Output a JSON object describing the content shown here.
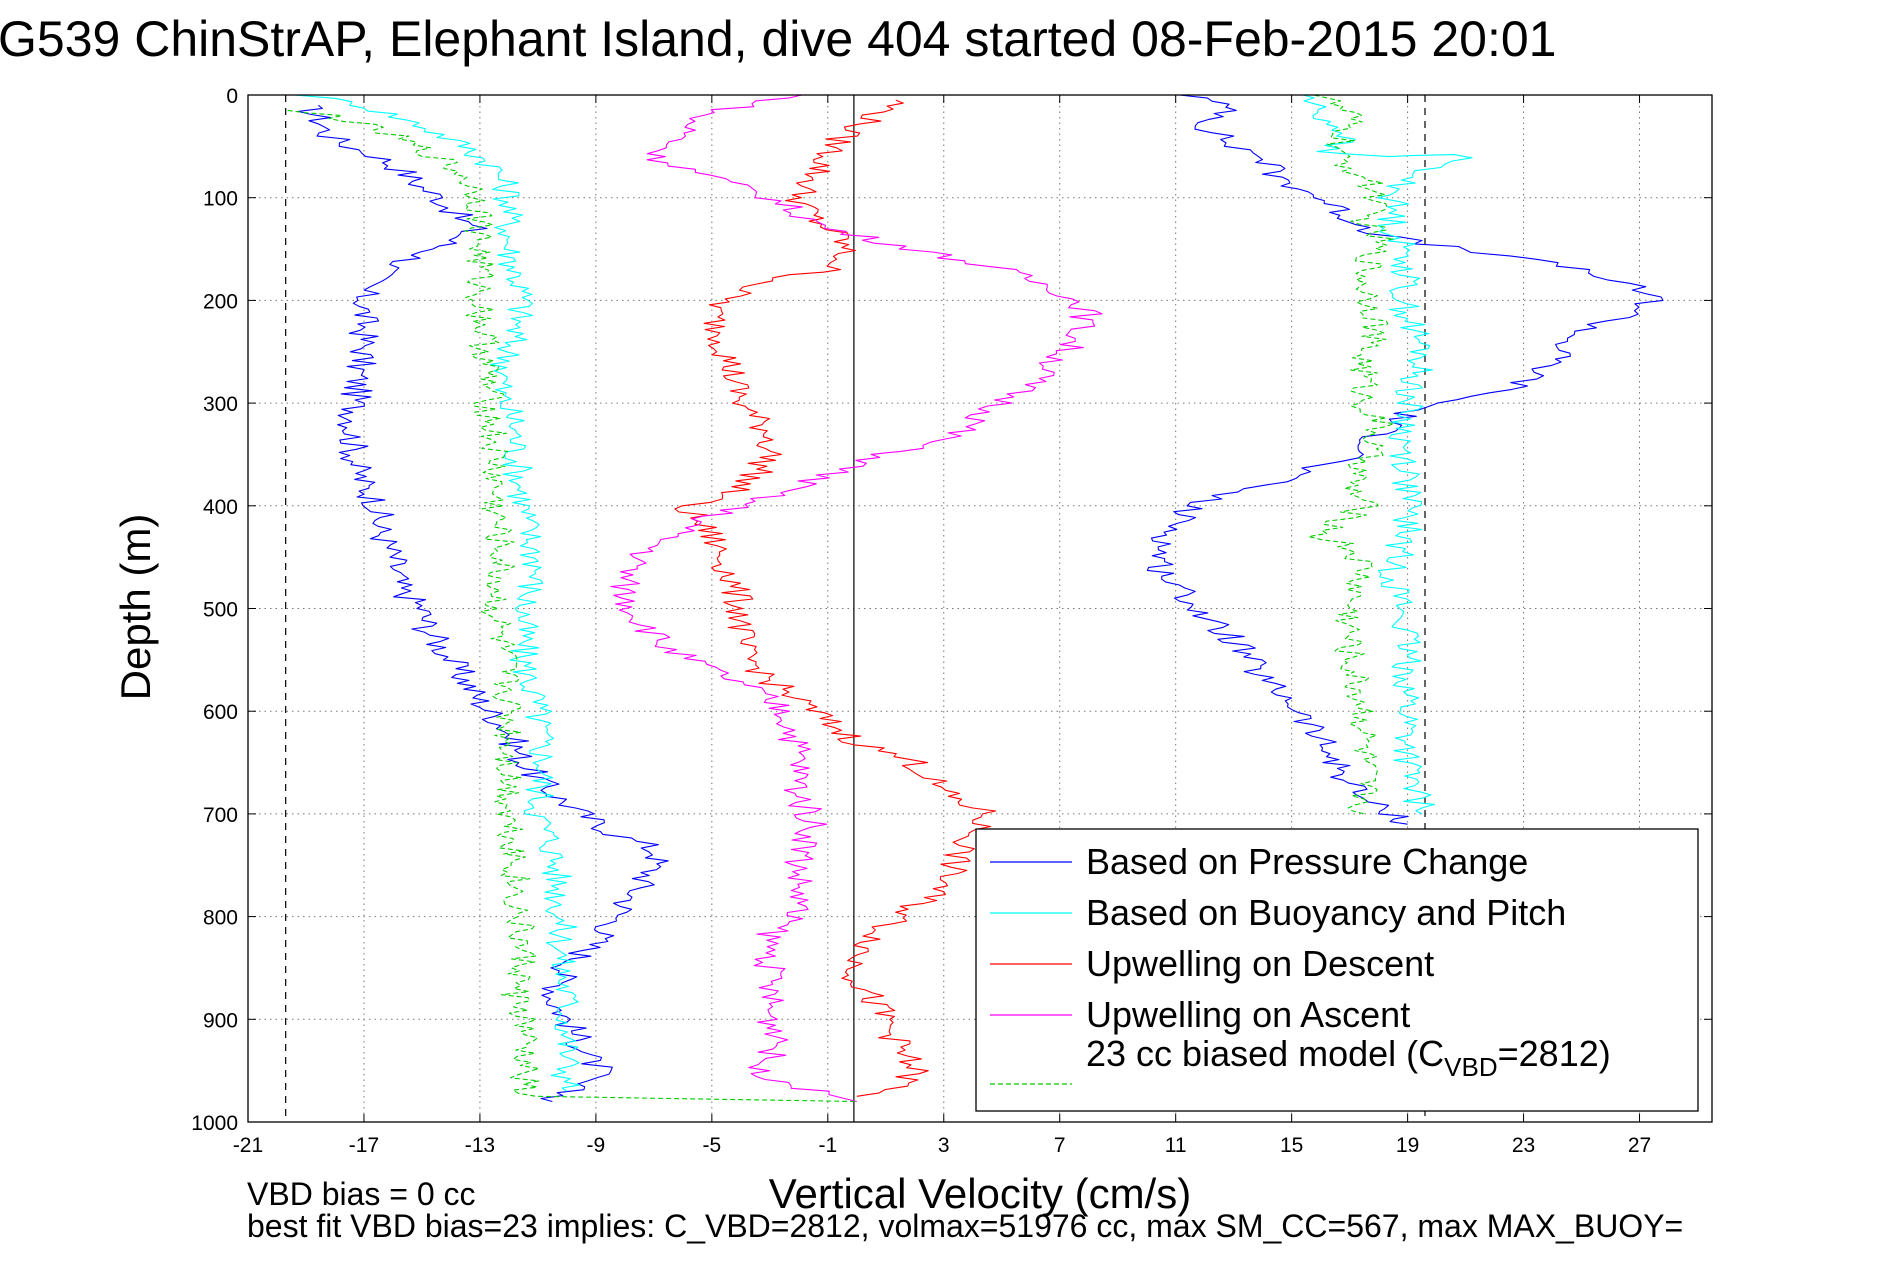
{
  "chart_data": {
    "type": "line",
    "title": "G539 ChinStrAP, Elephant Island, dive 404 started 08-Feb-2015 20:01",
    "xlabel": "Vertical Velocity (cm/s)",
    "ylabel": "Depth (m)",
    "xlim": [
      -21,
      29.5
    ],
    "ylim": [
      0,
      1000
    ],
    "y_reversed": true,
    "grid": true,
    "x_ticks": [
      -21,
      -17,
      -13,
      -9,
      -5,
      -1,
      3,
      7,
      11,
      15,
      19,
      23,
      27
    ],
    "x_tick_labels": [
      "-21",
      "-17",
      "-13",
      "-9",
      "-5",
      "-1",
      "3",
      "7",
      "11",
      "15",
      "19",
      "23",
      "27"
    ],
    "y_ticks": [
      0,
      100,
      200,
      300,
      400,
      500,
      600,
      700,
      800,
      900,
      1000
    ],
    "y_tick_labels": [
      "0",
      "100",
      "200",
      "300",
      "400",
      "500",
      "600",
      "700",
      "800",
      "900",
      "1000"
    ],
    "reference_lines": [
      {
        "x": -19.7,
        "style": "dashed",
        "color": "#000000"
      },
      {
        "x": -0.1,
        "style": "solid",
        "color": "#000000"
      },
      {
        "x": 19.6,
        "style": "dashed",
        "color": "#000000"
      }
    ],
    "legend_position": "lower-right",
    "series": [
      {
        "name": "Based on Pressure Change",
        "color": "#0000ff",
        "style": "solid",
        "branches": [
          {
            "x": [
              -19,
              -18.5,
              -18.2,
              -17.5,
              -16.5,
              -15.6,
              -15,
              -14.4,
              -14,
              -13.7,
              -13.2,
              -14.5,
              -15.8,
              -16.5,
              -17,
              -17,
              -17,
              -17,
              -17.2,
              -17.3,
              -17.4,
              -17.3,
              -17,
              -16.5,
              -16.5,
              -16,
              -15.8,
              -15,
              -14.8,
              -14,
              -13.5,
              -13,
              -12,
              -11.5,
              -10.5,
              -9.5,
              -8.3,
              -7.3,
              -6.8,
              -7.2,
              -8,
              -8.5,
              -9.2,
              -10,
              -10.3,
              -10.5,
              -10,
              -9.6,
              -9.2,
              -8.8,
              -9.5,
              -10.5
            ],
            "y": [
              10,
              25,
              40,
              50,
              60,
              75,
              90,
              100,
              110,
              120,
              130,
              150,
              165,
              175,
              190,
              200,
              220,
              250,
              270,
              300,
              330,
              360,
              380,
              400,
              420,
              450,
              480,
              500,
              520,
              550,
              570,
              590,
              620,
              650,
              680,
              700,
              720,
              730,
              740,
              760,
              790,
              810,
              830,
              850,
              870,
              880,
              900,
              920,
              940,
              950,
              960,
              980
            ]
          },
          {
            "x": [
              11.5,
              13,
              12,
              12.5,
              13,
              14,
              14.5,
              16,
              17,
              18,
              19.5,
              21,
              23,
              25,
              26,
              27,
              27.5,
              27,
              26,
              25,
              24.5,
              24,
              23.5,
              23,
              22,
              20,
              19,
              18,
              17.5,
              16,
              15,
              14,
              12.5,
              11.5,
              11,
              10.5,
              10.5,
              11,
              11.5,
              12,
              13,
              13.5,
              14,
              15,
              15.5,
              16,
              16.5,
              17,
              17.5,
              18,
              18.5,
              18.8,
              19
            ],
            "y": [
              0,
              15,
              30,
              40,
              50,
              60,
              80,
              100,
              120,
              135,
              145,
              150,
              160,
              170,
              180,
              190,
              200,
              210,
              220,
              230,
              240,
              260,
              270,
              280,
              290,
              300,
              310,
              330,
              350,
              360,
              370,
              380,
              390,
              400,
              420,
              440,
              460,
              480,
              490,
              510,
              530,
              550,
              570,
              590,
              610,
              630,
              650,
              670,
              685,
              695,
              700,
              705,
              710
            ]
          }
        ]
      },
      {
        "name": "Based on Buoyancy and Pitch",
        "color": "#00ffff",
        "style": "solid",
        "branches": [
          {
            "x": [
              -19,
              -17,
              -15,
              -13.5,
              -12.5,
              -12,
              -12,
              -12,
              -11.5,
              -12,
              -12.3,
              -11.8,
              -11.7,
              -11.5,
              -11.3,
              -11,
              -11.5,
              -11.5,
              -11,
              -10.8,
              -11,
              -10.5,
              -10.3,
              -10.2,
              -10.2,
              -10,
              -10,
              -10
            ],
            "y": [
              0,
              10,
              30,
              50,
              70,
              95,
              120,
              150,
              200,
              250,
              290,
              320,
              360,
              400,
              430,
              460,
              500,
              550,
              600,
              650,
              700,
              730,
              770,
              810,
              850,
              880,
              930,
              970
            ]
          },
          {
            "x": [
              15.5,
              16,
              17,
              16,
              18,
              21,
              19,
              18.5,
              18.5,
              19,
              18.8,
              19.5,
              19,
              18.8,
              19,
              19,
              19,
              18.5,
              18.8,
              19,
              19,
              19,
              19.5
            ],
            "y": [
              0,
              20,
              40,
              55,
              60,
              58,
              80,
              100,
              130,
              160,
              200,
              250,
              300,
              340,
              360,
              390,
              420,
              460,
              500,
              560,
              620,
              660,
              700
            ]
          }
        ]
      },
      {
        "name": "Upwelling on Descent",
        "color": "#ff0000",
        "style": "solid",
        "branches": [
          {
            "x": [
              1.5,
              -0.5,
              -1,
              -1.5,
              -2,
              -1.5,
              -0.5,
              -0.5,
              -1,
              -2,
              -4,
              -5,
              -4.5,
              -4,
              -3,
              -3,
              -3.5,
              -4.5,
              -6,
              -5,
              -4.5,
              -4,
              -4,
              -3,
              -2,
              -1,
              0,
              2,
              3,
              4.5,
              3.5,
              3,
              2,
              1,
              0,
              0,
              0.5,
              1,
              1.5,
              2,
              1.5,
              0
            ],
            "y": [
              5,
              40,
              60,
              80,
              100,
              120,
              140,
              160,
              170,
              175,
              190,
              210,
              250,
              300,
              330,
              350,
              370,
              390,
              400,
              430,
              460,
              500,
              540,
              570,
              590,
              610,
              630,
              650,
              680,
              700,
              740,
              770,
              790,
              810,
              840,
              860,
              880,
              900,
              930,
              950,
              965,
              975
            ]
          }
        ]
      },
      {
        "name": "Upwelling on Ascent",
        "color": "#ff00ff",
        "style": "solid",
        "branches": [
          {
            "x": [
              -2,
              -5.5,
              -6,
              -7,
              -3,
              -1,
              2,
              5,
              7,
              8,
              7.5,
              6.5,
              5,
              4,
              3,
              1,
              -1,
              -3,
              -5,
              -6.5,
              -7.5,
              -8,
              -8,
              -7.5,
              -6.5,
              -5,
              -3.5,
              -2.5,
              -2,
              -2,
              -1.5,
              -2,
              -2,
              -3,
              -3,
              -3,
              -2.5,
              -3.5,
              -1.5,
              0
            ],
            "y": [
              0,
              20,
              40,
              60,
              100,
              130,
              150,
              170,
              190,
              210,
              240,
              270,
              300,
              320,
              335,
              350,
              370,
              390,
              410,
              430,
              450,
              470,
              490,
              510,
              540,
              560,
              580,
              600,
              640,
              680,
              710,
              750,
              790,
              820,
              860,
              900,
              920,
              950,
              970,
              980
            ]
          }
        ]
      },
      {
        "name": "23 cc biased model (C",
        "name_sub": "VBD",
        "name_tail": "=2812)",
        "color": "#00cc00",
        "style": "dashed",
        "branches": [
          {
            "x": [
              -20,
              -18,
              -16,
              -14.5,
              -13.5,
              -13,
              -13,
              -13,
              -12.8,
              -12.7,
              -12.5,
              -12.5,
              -12.3,
              -12.5,
              -12.2,
              -12,
              -12,
              -12,
              -11.8,
              -11.8,
              -11.7,
              -11.5,
              -11.8,
              -11.5,
              -11.5,
              -11.5,
              -11.5,
              0
            ],
            "y": [
              15,
              20,
              40,
              60,
              80,
              100,
              150,
              200,
              250,
              300,
              350,
              400,
              450,
              500,
              550,
              600,
              650,
              700,
              730,
              760,
              800,
              850,
              870,
              900,
              930,
              960,
              975,
              980
            ]
          },
          {
            "x": [
              -2,
              16,
              17,
              16.5,
              17.5,
              18,
              17.5,
              18,
              17.5,
              18,
              17.5,
              17.5,
              18,
              17.5,
              17,
              17.5,
              16,
              17,
              17.5,
              17,
              17,
              17.5,
              17.5,
              17.5
            ],
            "y": [
              0,
              0,
              20,
              60,
              80,
              100,
              120,
              140,
              180,
              220,
              250,
              300,
              320,
              360,
              380,
              400,
              430,
              440,
              460,
              500,
              550,
              600,
              650,
              700
            ]
          }
        ]
      }
    ]
  },
  "footer": {
    "line1": "VBD bias = 0 cc",
    "line2": "best fit VBD bias=23 implies: C_VBD=2812, volmax=51976 cc, max SM_CC=567, max MAX_BUOY="
  }
}
